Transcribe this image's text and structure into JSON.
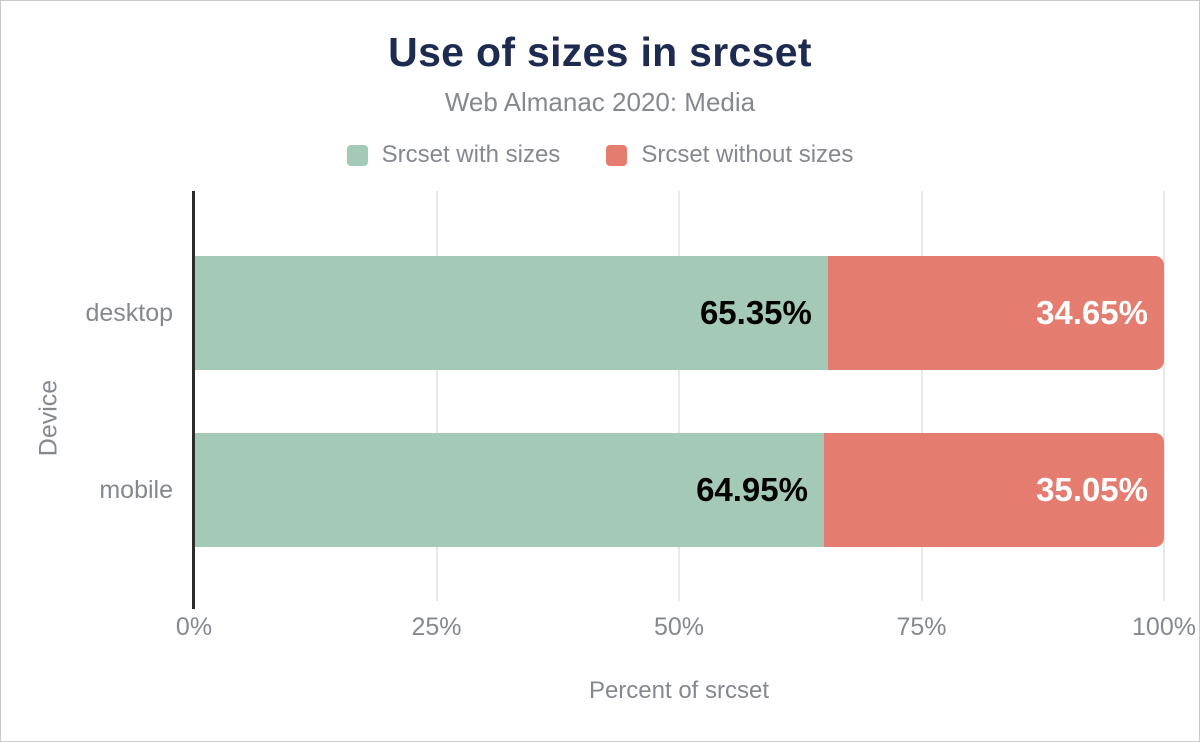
{
  "chart_data": {
    "type": "bar",
    "orientation": "horizontal",
    "stacked": true,
    "title": "Use of sizes in srcset",
    "subtitle": "Web Almanac 2020: Media",
    "xlabel": "Percent of srcset",
    "ylabel": "Device",
    "xlim": [
      0,
      100
    ],
    "x_ticks": [
      "0%",
      "25%",
      "50%",
      "75%",
      "100%"
    ],
    "grid": "vertical",
    "legend_position": "top",
    "categories": [
      "desktop",
      "mobile"
    ],
    "series": [
      {
        "name": "Srcset with sizes",
        "color": "#a4c9b6",
        "values": [
          65.35,
          64.95
        ]
      },
      {
        "name": "Srcset without sizes",
        "color": "#e57c70",
        "values": [
          34.65,
          35.05
        ]
      }
    ],
    "value_labels": [
      [
        "65.35%",
        "34.65%"
      ],
      [
        "64.95%",
        "35.05%"
      ]
    ]
  },
  "colors": {
    "title": "#1e2b50",
    "muted_text": "#85898f",
    "axis_line": "#2b2b2b",
    "gridline": "#e9e9e9",
    "label_on_green": "#000000",
    "label_on_red": "#ffffff",
    "background": "#ffffff"
  }
}
